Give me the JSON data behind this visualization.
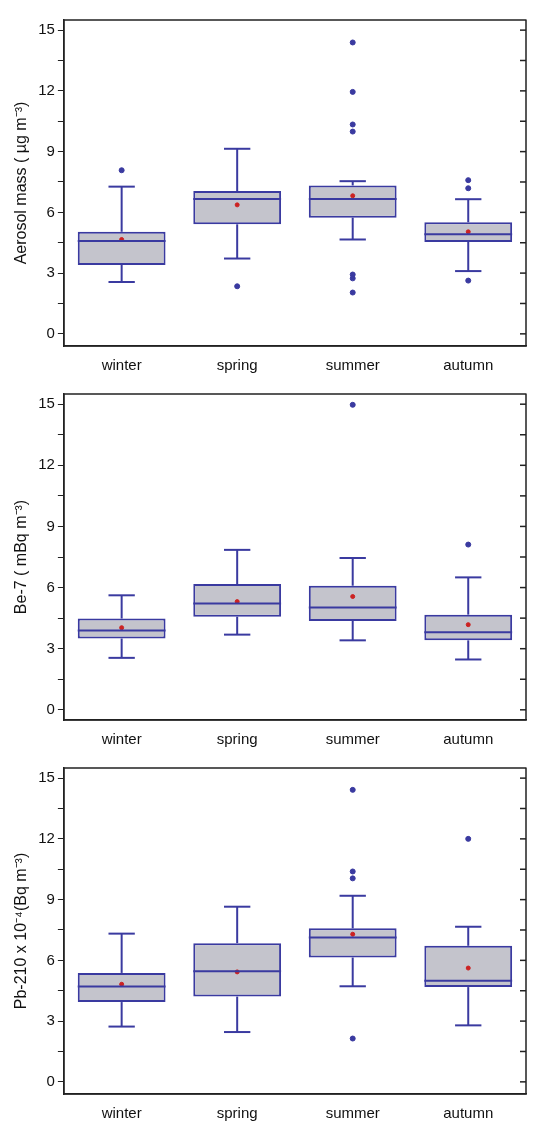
{
  "chart_data": [
    {
      "type": "box",
      "ylabel": "Aerosol mass ( µg m⁻³)",
      "categories": [
        "winter",
        "spring",
        "summer",
        "autumn"
      ],
      "color": "#3a3aa0",
      "ylim": [
        -0.6,
        15.5
      ],
      "yticks": [
        0,
        {
          "value": 1.5,
          "label": null
        },
        3,
        {
          "value": 4.5,
          "label": null
        },
        6,
        {
          "value": 7.5,
          "label": null
        },
        9,
        {
          "value": 10.5,
          "label": null
        },
        12,
        {
          "value": 13.5,
          "label": null
        },
        15
      ],
      "grid": false,
      "boxes": [
        {
          "low": 2.56,
          "q1": 3.4,
          "median": 4.59,
          "q3": 5.04,
          "high": 7.27,
          "mean": 4.66,
          "outliers": [
            8.08
          ]
        },
        {
          "low": 3.72,
          "q1": 5.41,
          "median": 6.66,
          "q3": 7.05,
          "high": 9.14,
          "mean": 6.37,
          "outliers": [
            2.35
          ]
        },
        {
          "low": 4.66,
          "q1": 5.74,
          "median": 6.66,
          "q3": 7.33,
          "high": 7.54,
          "mean": 6.82,
          "outliers": [
            14.39,
            11.95,
            10.34,
            9.99,
            2.93,
            2.74,
            2.04
          ]
        },
        {
          "low": 3.1,
          "q1": 4.54,
          "median": 4.92,
          "q3": 5.51,
          "high": 6.65,
          "mean": 5.04,
          "outliers": [
            7.59,
            7.19,
            2.63
          ]
        }
      ]
    },
    {
      "type": "box",
      "ylabel": "Be-7 ( mBq m⁻³)",
      "categories": [
        "winter",
        "spring",
        "summer",
        "autumn"
      ],
      "color": "#3a3aa0",
      "ylim": [
        -0.5,
        15.5
      ],
      "yticks": [
        0,
        {
          "value": 1.5,
          "label": null
        },
        3,
        {
          "value": 4.5,
          "label": null
        },
        6,
        {
          "value": 7.5,
          "label": null
        },
        9,
        {
          "value": 10.5,
          "label": null
        },
        12,
        {
          "value": 13.5,
          "label": null
        },
        15
      ],
      "grid": false,
      "boxes": [
        {
          "low": 2.55,
          "q1": 3.5,
          "median": 3.89,
          "q3": 4.48,
          "high": 5.62,
          "mean": 4.03
        },
        {
          "low": 3.69,
          "q1": 4.57,
          "median": 5.22,
          "q3": 6.17,
          "high": 7.85,
          "mean": 5.31
        },
        {
          "low": 3.41,
          "q1": 4.36,
          "median": 5.02,
          "q3": 6.09,
          "high": 7.45,
          "mean": 5.56,
          "outliers": [
            14.97
          ]
        },
        {
          "low": 2.47,
          "q1": 3.41,
          "median": 3.81,
          "q3": 4.67,
          "high": 6.5,
          "mean": 4.18,
          "outliers": [
            8.11
          ]
        }
      ]
    },
    {
      "type": "box",
      "ylabel": "Pb-210 x 10⁻⁴(Bq m⁻³)",
      "categories": [
        "winter",
        "spring",
        "summer",
        "autumn"
      ],
      "color": "#3a3aa0",
      "ylim": [
        -0.6,
        15.5
      ],
      "yticks": [
        0,
        {
          "value": 1.5,
          "label": null
        },
        3,
        {
          "value": 4.5,
          "label": null
        },
        6,
        {
          "value": 7.5,
          "label": null
        },
        9,
        {
          "value": 10.5,
          "label": null
        },
        12,
        {
          "value": 13.5,
          "label": null
        },
        15
      ],
      "grid": false,
      "boxes": [
        {
          "low": 2.73,
          "q1": 3.94,
          "median": 4.71,
          "q3": 5.38,
          "high": 7.32,
          "mean": 4.82
        },
        {
          "low": 2.46,
          "q1": 4.21,
          "median": 5.46,
          "q3": 6.85,
          "high": 8.65,
          "mean": 5.43
        },
        {
          "low": 4.72,
          "q1": 6.14,
          "median": 7.13,
          "q3": 7.58,
          "high": 9.19,
          "mean": 7.29,
          "outliers": [
            14.42,
            10.39,
            10.05,
            2.14
          ]
        },
        {
          "low": 2.79,
          "q1": 4.68,
          "median": 4.99,
          "q3": 6.72,
          "high": 7.66,
          "mean": 5.62,
          "outliers": [
            12.0
          ]
        }
      ]
    }
  ]
}
